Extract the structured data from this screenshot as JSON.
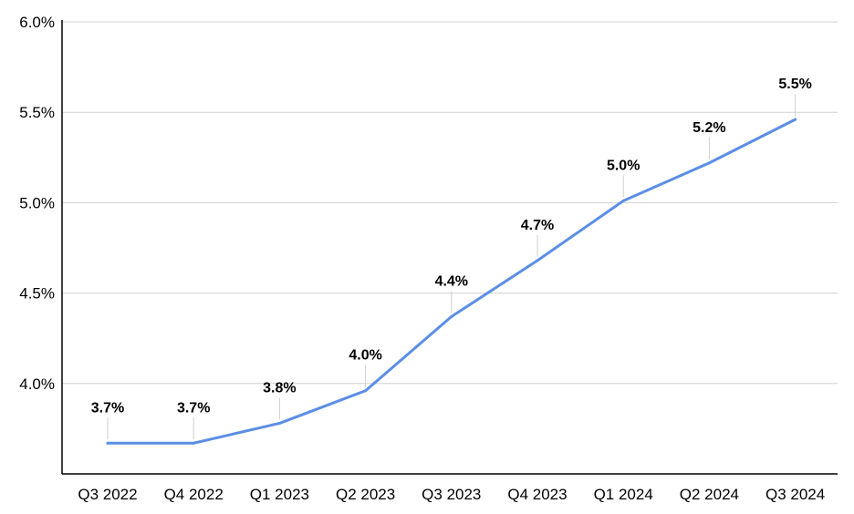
{
  "chart_data": {
    "type": "line",
    "categories": [
      "Q3 2022",
      "Q4 2022",
      "Q1 2023",
      "Q2 2023",
      "Q3 2023",
      "Q4 2023",
      "Q1 2024",
      "Q2 2024",
      "Q3 2024"
    ],
    "series": [
      {
        "values": [
          3.67,
          3.67,
          3.78,
          3.96,
          4.37,
          4.68,
          5.01,
          5.22,
          5.46
        ]
      }
    ],
    "data_labels": [
      "3.7%",
      "3.7%",
      "3.8%",
      "4.0%",
      "4.4%",
      "4.7%",
      "5.0%",
      "5.2%",
      "5.5%"
    ],
    "ylim": [
      3.5,
      6.0
    ],
    "yticks": [
      4.0,
      4.5,
      5.0,
      5.5,
      6.0
    ],
    "ytick_labels": [
      "4.0%",
      "4.5%",
      "5.0%",
      "5.5%",
      "6.0%"
    ],
    "title": "",
    "xlabel": "",
    "ylabel": "",
    "grid": "horizontal",
    "colors": {
      "line": "#5b8ee6",
      "grid": "#d0d0d0",
      "axis": "#000000"
    }
  }
}
